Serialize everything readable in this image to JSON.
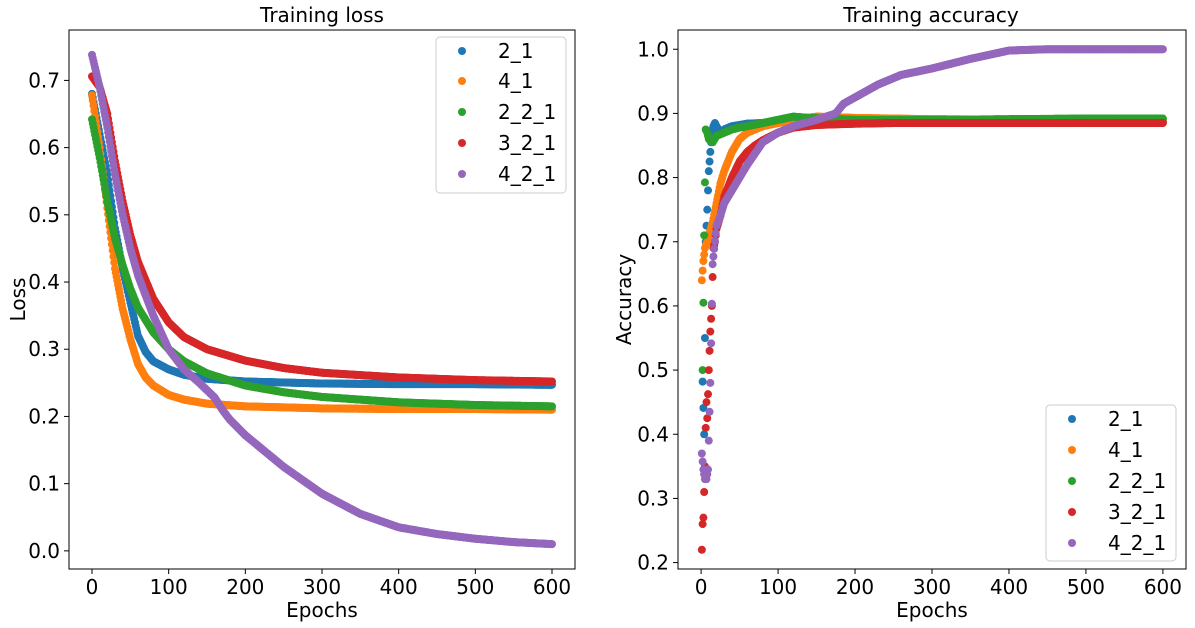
{
  "chart_data": [
    {
      "type": "scatter",
      "title": "Training loss",
      "xlabel": "Epochs",
      "ylabel": "Loss",
      "xlim": [
        -30,
        630
      ],
      "ylim": [
        -0.027,
        0.775
      ],
      "xticks": [
        0,
        100,
        200,
        300,
        400,
        500,
        600
      ],
      "yticks": [
        0.0,
        0.1,
        0.2,
        0.3,
        0.4,
        0.5,
        0.6,
        0.7
      ],
      "ytick_labels": [
        "0.0",
        "0.1",
        "0.2",
        "0.3",
        "0.4",
        "0.5",
        "0.6",
        "0.7"
      ],
      "grid": false,
      "legend_position": "top-right",
      "series": [
        {
          "name": "2_1",
          "color": "#1f77b4",
          "x": [
            0,
            10,
            20,
            30,
            40,
            50,
            60,
            70,
            80,
            100,
            120,
            150,
            200,
            300,
            400,
            500,
            600
          ],
          "y": [
            0.68,
            0.62,
            0.56,
            0.48,
            0.42,
            0.37,
            0.32,
            0.296,
            0.282,
            0.27,
            0.262,
            0.256,
            0.252,
            0.249,
            0.248,
            0.248,
            0.247
          ]
        },
        {
          "name": "4_1",
          "color": "#ff7f0e",
          "x": [
            0,
            10,
            20,
            30,
            40,
            50,
            60,
            70,
            80,
            100,
            120,
            150,
            200,
            300,
            400,
            500,
            600
          ],
          "y": [
            0.678,
            0.6,
            0.51,
            0.42,
            0.36,
            0.315,
            0.278,
            0.258,
            0.246,
            0.232,
            0.225,
            0.219,
            0.215,
            0.212,
            0.211,
            0.211,
            0.21
          ]
        },
        {
          "name": "2_2_1",
          "color": "#2ca02c",
          "x": [
            0,
            10,
            20,
            30,
            40,
            50,
            60,
            80,
            100,
            120,
            150,
            200,
            250,
            300,
            400,
            500,
            600
          ],
          "y": [
            0.642,
            0.585,
            0.52,
            0.465,
            0.425,
            0.39,
            0.362,
            0.325,
            0.3,
            0.282,
            0.264,
            0.246,
            0.236,
            0.229,
            0.221,
            0.217,
            0.215
          ]
        },
        {
          "name": "3_2_1",
          "color": "#d62728",
          "x": [
            0,
            10,
            20,
            30,
            40,
            50,
            60,
            80,
            100,
            120,
            150,
            200,
            250,
            300,
            400,
            500,
            600
          ],
          "y": [
            0.706,
            0.69,
            0.65,
            0.58,
            0.52,
            0.47,
            0.43,
            0.375,
            0.34,
            0.318,
            0.3,
            0.283,
            0.272,
            0.265,
            0.258,
            0.254,
            0.252
          ]
        },
        {
          "name": "4_2_1",
          "color": "#9467bd",
          "x": [
            0,
            10,
            20,
            30,
            40,
            50,
            60,
            80,
            100,
            120,
            140,
            160,
            170,
            180,
            200,
            250,
            300,
            350,
            400,
            450,
            500,
            550,
            600
          ],
          "y": [
            0.738,
            0.69,
            0.63,
            0.56,
            0.5,
            0.45,
            0.41,
            0.35,
            0.3,
            0.27,
            0.25,
            0.228,
            0.21,
            0.195,
            0.172,
            0.125,
            0.085,
            0.055,
            0.035,
            0.025,
            0.018,
            0.013,
            0.01
          ]
        }
      ]
    },
    {
      "type": "scatter",
      "title": "Training accuracy",
      "xlabel": "Epochs",
      "ylabel": "Accuracy",
      "xlim": [
        -30,
        630
      ],
      "ylim": [
        0.19,
        1.03
      ],
      "xticks": [
        0,
        100,
        200,
        300,
        400,
        500,
        600
      ],
      "yticks": [
        0.2,
        0.3,
        0.4,
        0.5,
        0.6,
        0.7,
        0.8,
        0.9,
        1.0
      ],
      "ytick_labels": [
        "0.2",
        "0.3",
        "0.4",
        "0.5",
        "0.6",
        "0.7",
        "0.8",
        "0.9",
        "1.0"
      ],
      "grid": false,
      "legend_position": "bottom-right",
      "series": [
        {
          "name": "2_1",
          "color": "#1f77b4",
          "x": [
            2,
            4,
            6,
            8,
            10,
            12,
            14,
            16,
            18,
            20,
            25,
            30,
            40,
            50,
            60,
            80,
            100,
            150,
            200,
            300,
            400,
            500,
            600
          ],
          "y": [
            0.482,
            0.4,
            0.7,
            0.75,
            0.81,
            0.84,
            0.87,
            0.88,
            0.885,
            0.88,
            0.87,
            0.875,
            0.88,
            0.882,
            0.884,
            0.885,
            0.886,
            0.887,
            0.888,
            0.888,
            0.888,
            0.888,
            0.888
          ]
        },
        {
          "name": "4_1",
          "color": "#ff7f0e",
          "x": [
            1,
            3,
            5,
            8,
            10,
            15,
            20,
            25,
            30,
            40,
            50,
            60,
            80,
            100,
            120,
            150,
            200,
            250,
            300,
            400,
            500,
            600
          ],
          "y": [
            0.64,
            0.67,
            0.69,
            0.7,
            0.71,
            0.73,
            0.76,
            0.79,
            0.81,
            0.84,
            0.86,
            0.87,
            0.88,
            0.885,
            0.89,
            0.895,
            0.893,
            0.892,
            0.891,
            0.89,
            0.89,
            0.89
          ]
        },
        {
          "name": "2_2_1",
          "color": "#2ca02c",
          "x": [
            2,
            4,
            6,
            8,
            10,
            15,
            20,
            30,
            40,
            50,
            60,
            80,
            100,
            120,
            140,
            160,
            200,
            250,
            300,
            400,
            500,
            600
          ],
          "y": [
            0.5,
            0.71,
            0.875,
            0.87,
            0.86,
            0.855,
            0.865,
            0.87,
            0.875,
            0.878,
            0.88,
            0.885,
            0.89,
            0.895,
            0.893,
            0.892,
            0.89,
            0.89,
            0.89,
            0.891,
            0.892,
            0.892
          ]
        },
        {
          "name": "3_2_1",
          "color": "#d62728",
          "x": [
            1,
            2,
            3,
            5,
            6,
            7,
            8,
            10,
            12,
            14,
            16,
            18,
            20,
            25,
            30,
            40,
            50,
            60,
            70,
            80,
            100,
            120,
            150,
            200,
            250,
            300,
            400,
            500,
            600
          ],
          "y": [
            0.22,
            0.26,
            0.27,
            0.35,
            0.41,
            0.45,
            0.425,
            0.5,
            0.56,
            0.6,
            0.69,
            0.7,
            0.72,
            0.74,
            0.77,
            0.8,
            0.825,
            0.84,
            0.85,
            0.858,
            0.87,
            0.878,
            0.882,
            0.884,
            0.885,
            0.885,
            0.885,
            0.885,
            0.885
          ]
        },
        {
          "name": "4_2_1",
          "color": "#9467bd",
          "x": [
            1,
            3,
            5,
            7,
            9,
            12,
            15,
            20,
            25,
            30,
            40,
            50,
            60,
            80,
            100,
            120,
            150,
            175,
            185,
            200,
            230,
            260,
            300,
            350,
            400,
            450,
            500,
            550,
            600
          ],
          "y": [
            0.37,
            0.345,
            0.33,
            0.33,
            0.345,
            0.48,
            0.665,
            0.725,
            0.74,
            0.76,
            0.78,
            0.8,
            0.82,
            0.855,
            0.87,
            0.88,
            0.89,
            0.9,
            0.915,
            0.925,
            0.945,
            0.96,
            0.97,
            0.985,
            0.998,
            1.0,
            1.0,
            1.0,
            1.0
          ]
        }
      ]
    }
  ]
}
